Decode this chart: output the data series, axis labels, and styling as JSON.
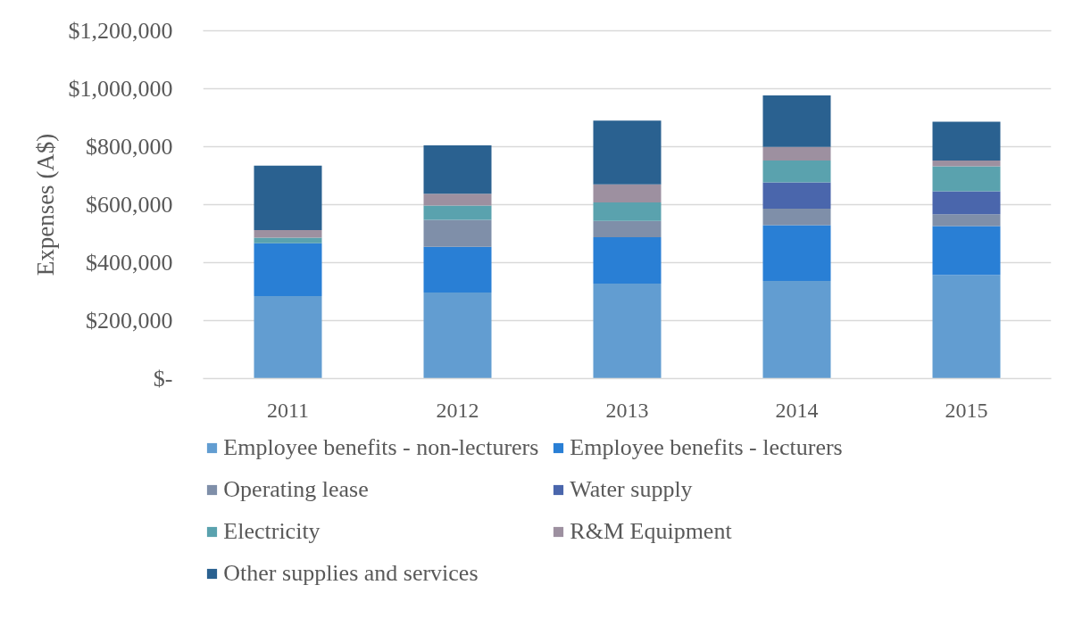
{
  "chart_data": {
    "type": "bar",
    "stacked": true,
    "ylabel": "Expenses (A$)",
    "categories": [
      "2011",
      "2012",
      "2013",
      "2014",
      "2015"
    ],
    "ylim": [
      0,
      1200000
    ],
    "yticks": [
      {
        "value": 0,
        "label": "$-"
      },
      {
        "value": 200000,
        "label": "$200,000"
      },
      {
        "value": 400000,
        "label": "$400,000"
      },
      {
        "value": 600000,
        "label": "$600,000"
      },
      {
        "value": 800000,
        "label": "$800,000"
      },
      {
        "value": 1000000,
        "label": "$1,000,000"
      },
      {
        "value": 1200000,
        "label": "$1,200,000"
      }
    ],
    "grid": "y",
    "legend": "bottom",
    "series": [
      {
        "name": "Employee benefits - non-lecturers",
        "color": "#629dd1",
        "values": [
          285000,
          297000,
          328000,
          337000,
          358000
        ]
      },
      {
        "name": "Employee benefits - lecturers",
        "color": "#297fd5",
        "values": [
          182000,
          158000,
          160000,
          192000,
          168000
        ]
      },
      {
        "name": "Operating lease",
        "color": "#7f8fa9",
        "values": [
          null,
          93000,
          56000,
          57000,
          41000
        ]
      },
      {
        "name": "Water supply",
        "color": "#4a66ac",
        "values": [
          null,
          null,
          null,
          91000,
          79000
        ]
      },
      {
        "name": "Electricity",
        "color": "#5aa2ae",
        "values": [
          19000,
          49000,
          64000,
          75000,
          86000
        ]
      },
      {
        "name": "R&M Equipment",
        "color": "#9d90a0",
        "values": [
          26000,
          41000,
          62000,
          47000,
          20000
        ]
      },
      {
        "name": "Other supplies and services",
        "color": "#2a6190",
        "values": [
          223000,
          167000,
          220000,
          178000,
          134000
        ]
      }
    ]
  }
}
